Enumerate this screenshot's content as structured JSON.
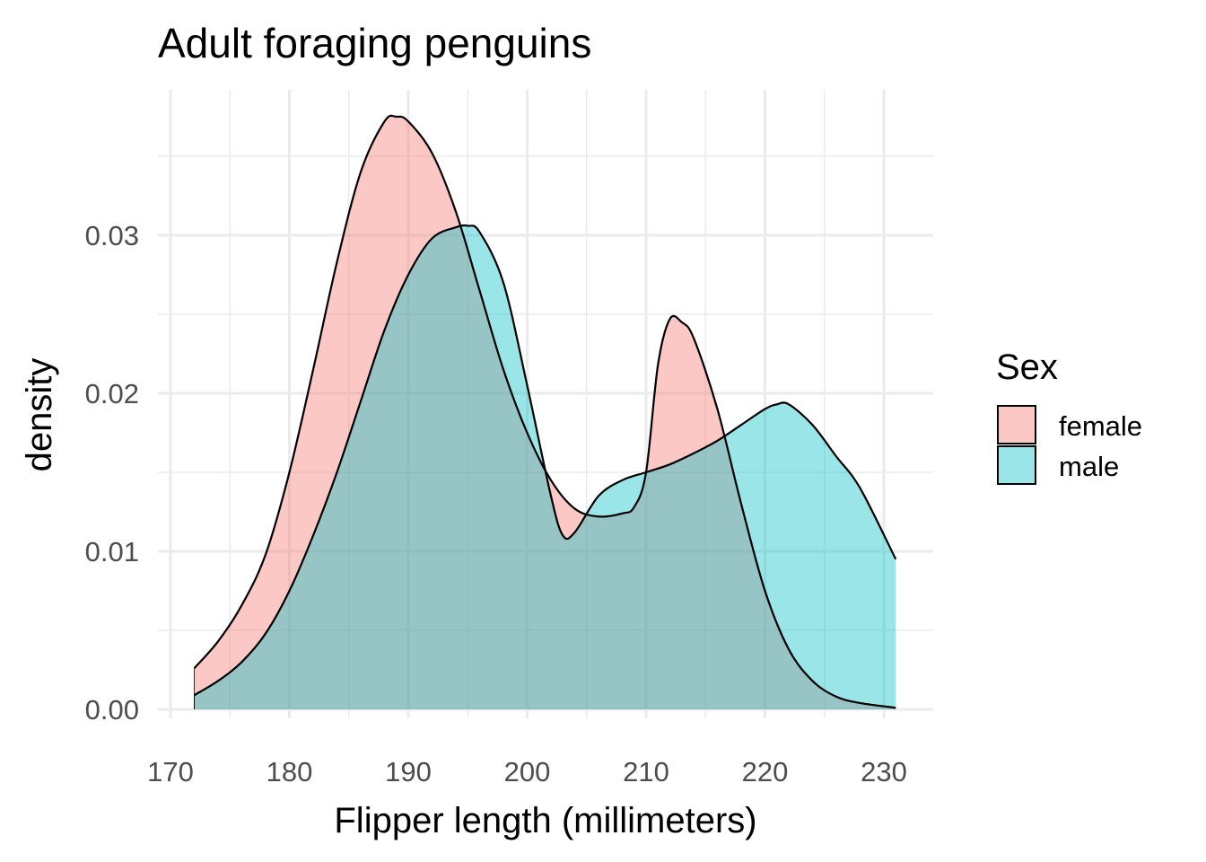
{
  "chart_data": {
    "type": "area",
    "title": "Adult foraging penguins",
    "xlabel": "Flipper length (millimeters)",
    "ylabel": "density",
    "xlim": [
      170,
      231
    ],
    "ylim": [
      0,
      0.0375
    ],
    "x_ticks": [
      "170",
      "180",
      "190",
      "200",
      "210",
      "220",
      "230"
    ],
    "y_ticks": [
      "0.00",
      "0.01",
      "0.02",
      "0.03"
    ],
    "grid": true,
    "legend": {
      "title": "Sex",
      "placement": "right"
    },
    "series": [
      {
        "name": "female",
        "color": "#F8766D",
        "x": [
          172,
          174,
          176,
          178,
          180,
          182,
          184,
          186,
          188,
          189,
          190,
          192,
          194,
          196,
          198,
          200,
          202,
          204,
          206,
          208,
          209,
          210,
          211,
          212,
          213,
          214,
          216,
          218,
          220,
          222,
          224,
          226,
          228,
          231
        ],
        "values": [
          0.0026,
          0.0043,
          0.0066,
          0.0098,
          0.015,
          0.0215,
          0.0283,
          0.034,
          0.0372,
          0.0375,
          0.0372,
          0.0352,
          0.0315,
          0.0265,
          0.0215,
          0.0175,
          0.0145,
          0.0127,
          0.0122,
          0.0124,
          0.0128,
          0.015,
          0.0218,
          0.0247,
          0.0245,
          0.0235,
          0.019,
          0.013,
          0.0075,
          0.0038,
          0.0018,
          0.0008,
          0.0004,
          0.0001
        ]
      },
      {
        "name": "male",
        "color": "#00BFC4",
        "x": [
          172,
          174,
          176,
          178,
          180,
          182,
          184,
          186,
          188,
          190,
          192,
          194,
          195,
          196,
          198,
          200,
          202,
          203,
          204,
          206,
          208,
          210,
          212,
          214,
          216,
          218,
          220,
          221,
          222,
          224,
          226,
          228,
          231
        ],
        "values": [
          0.0009,
          0.0018,
          0.003,
          0.0048,
          0.0075,
          0.011,
          0.015,
          0.0195,
          0.024,
          0.0275,
          0.0298,
          0.0305,
          0.0306,
          0.0302,
          0.027,
          0.0205,
          0.0135,
          0.011,
          0.0112,
          0.0135,
          0.0145,
          0.015,
          0.0155,
          0.0162,
          0.017,
          0.018,
          0.019,
          0.0193,
          0.0193,
          0.018,
          0.016,
          0.014,
          0.0095
        ]
      }
    ]
  }
}
